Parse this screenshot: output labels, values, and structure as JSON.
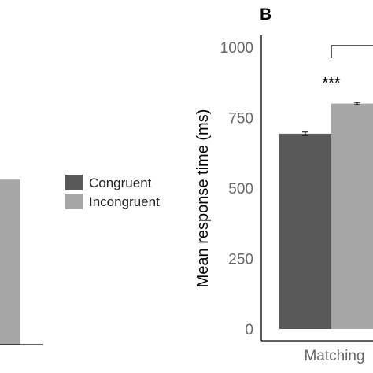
{
  "chart_data": [
    {
      "panel": "",
      "type": "bar",
      "categories": [
        ""
      ],
      "series": [
        {
          "values": [
            null
          ]
        },
        {
          "values": [
            530
          ]
        }
      ],
      "ylim": [
        0,
        1000
      ]
    },
    {
      "panel": "B",
      "type": "bar",
      "categories": [
        "Matching"
      ],
      "series": [
        {
          "name": "Congruent",
          "values": [
            693
          ],
          "errors": [
            6
          ],
          "color": "#595959"
        },
        {
          "name": "Incongruent",
          "values": [
            800
          ],
          "errors": [
            4
          ],
          "color": "#a6a6a6"
        }
      ],
      "ylabel": "Mean response time (ms)",
      "ylim": [
        0,
        1000
      ],
      "yticks": [
        "0",
        "250",
        "500",
        "750",
        "1000"
      ],
      "annotations": [
        "***"
      ],
      "grid": false,
      "legend_position": "left"
    }
  ],
  "legend": {
    "items": [
      {
        "label": "Congruent",
        "color": "#595959"
      },
      {
        "label": "Incongruent",
        "color": "#a6a6a6"
      }
    ]
  }
}
